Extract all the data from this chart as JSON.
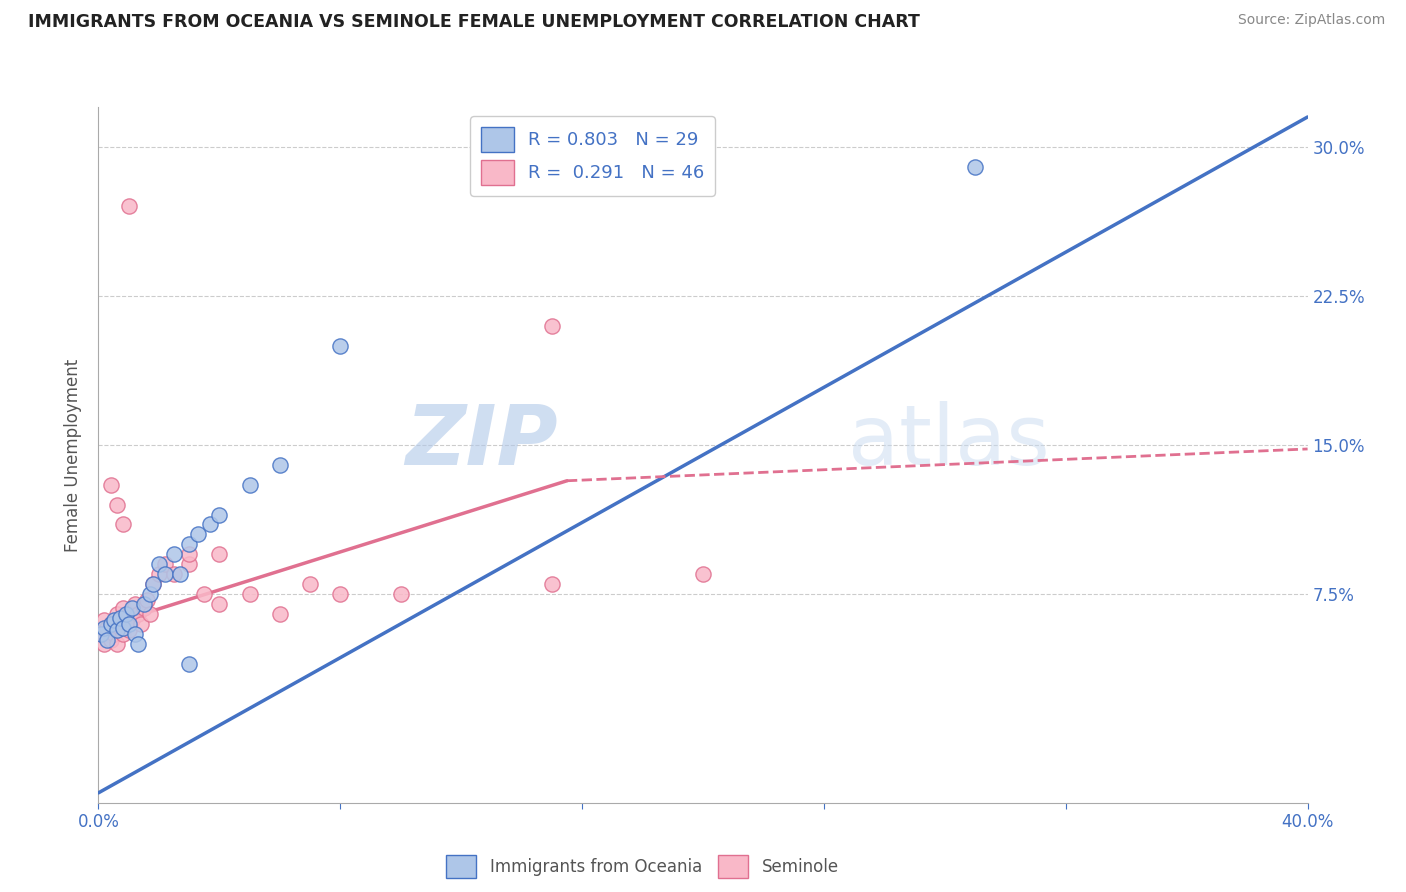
{
  "title": "IMMIGRANTS FROM OCEANIA VS SEMINOLE FEMALE UNEMPLOYMENT CORRELATION CHART",
  "source": "Source: ZipAtlas.com",
  "ylabel": "Female Unemployment",
  "xlim": [
    0.0,
    0.4
  ],
  "ylim": [
    -0.03,
    0.32
  ],
  "yticks": [
    0.075,
    0.15,
    0.225,
    0.3
  ],
  "ytick_labels": [
    "7.5%",
    "15.0%",
    "22.5%",
    "30.0%"
  ],
  "scatter_blue": [
    [
      0.001,
      0.055
    ],
    [
      0.002,
      0.058
    ],
    [
      0.003,
      0.052
    ],
    [
      0.004,
      0.06
    ],
    [
      0.005,
      0.062
    ],
    [
      0.006,
      0.057
    ],
    [
      0.007,
      0.063
    ],
    [
      0.008,
      0.058
    ],
    [
      0.009,
      0.065
    ],
    [
      0.01,
      0.06
    ],
    [
      0.011,
      0.068
    ],
    [
      0.012,
      0.055
    ],
    [
      0.013,
      0.05
    ],
    [
      0.015,
      0.07
    ],
    [
      0.017,
      0.075
    ],
    [
      0.018,
      0.08
    ],
    [
      0.02,
      0.09
    ],
    [
      0.022,
      0.085
    ],
    [
      0.025,
      0.095
    ],
    [
      0.027,
      0.085
    ],
    [
      0.03,
      0.1
    ],
    [
      0.033,
      0.105
    ],
    [
      0.037,
      0.11
    ],
    [
      0.04,
      0.115
    ],
    [
      0.05,
      0.13
    ],
    [
      0.06,
      0.14
    ],
    [
      0.08,
      0.2
    ],
    [
      0.03,
      0.04
    ],
    [
      0.29,
      0.29
    ]
  ],
  "scatter_pink": [
    [
      0.001,
      0.055
    ],
    [
      0.002,
      0.05
    ],
    [
      0.002,
      0.062
    ],
    [
      0.003,
      0.055
    ],
    [
      0.003,
      0.058
    ],
    [
      0.004,
      0.06
    ],
    [
      0.004,
      0.052
    ],
    [
      0.005,
      0.055
    ],
    [
      0.005,
      0.06
    ],
    [
      0.006,
      0.065
    ],
    [
      0.006,
      0.05
    ],
    [
      0.007,
      0.058
    ],
    [
      0.007,
      0.062
    ],
    [
      0.008,
      0.068
    ],
    [
      0.008,
      0.055
    ],
    [
      0.009,
      0.06
    ],
    [
      0.01,
      0.065
    ],
    [
      0.01,
      0.057
    ],
    [
      0.011,
      0.062
    ],
    [
      0.012,
      0.07
    ],
    [
      0.013,
      0.065
    ],
    [
      0.014,
      0.06
    ],
    [
      0.015,
      0.068
    ],
    [
      0.016,
      0.072
    ],
    [
      0.017,
      0.065
    ],
    [
      0.018,
      0.08
    ],
    [
      0.02,
      0.085
    ],
    [
      0.022,
      0.09
    ],
    [
      0.025,
      0.085
    ],
    [
      0.03,
      0.09
    ],
    [
      0.035,
      0.075
    ],
    [
      0.04,
      0.07
    ],
    [
      0.05,
      0.075
    ],
    [
      0.06,
      0.065
    ],
    [
      0.07,
      0.08
    ],
    [
      0.08,
      0.075
    ],
    [
      0.1,
      0.075
    ],
    [
      0.15,
      0.08
    ],
    [
      0.2,
      0.085
    ],
    [
      0.01,
      0.27
    ],
    [
      0.15,
      0.21
    ],
    [
      0.004,
      0.13
    ],
    [
      0.006,
      0.12
    ],
    [
      0.008,
      0.11
    ],
    [
      0.03,
      0.095
    ],
    [
      0.04,
      0.095
    ]
  ],
  "trendline_blue_solid": {
    "x": [
      0.0,
      0.4
    ],
    "y": [
      -0.025,
      0.315
    ]
  },
  "trendline_pink_solid": {
    "x": [
      0.0,
      0.155
    ],
    "y": [
      0.058,
      0.132
    ]
  },
  "trendline_pink_dashed": {
    "x": [
      0.155,
      0.4
    ],
    "y": [
      0.132,
      0.148
    ]
  },
  "blue_line_color": "#4472c4",
  "pink_line_color": "#e07090",
  "blue_scatter_face": "#aec6e8",
  "blue_scatter_edge": "#4472c4",
  "pink_scatter_face": "#f9b8c8",
  "pink_scatter_edge": "#e07090",
  "watermark_color": "#c8d8f0",
  "background_color": "#ffffff",
  "grid_color": "#cccccc",
  "tick_color": "#4472c4",
  "label_color": "#555555",
  "title_color": "#222222"
}
